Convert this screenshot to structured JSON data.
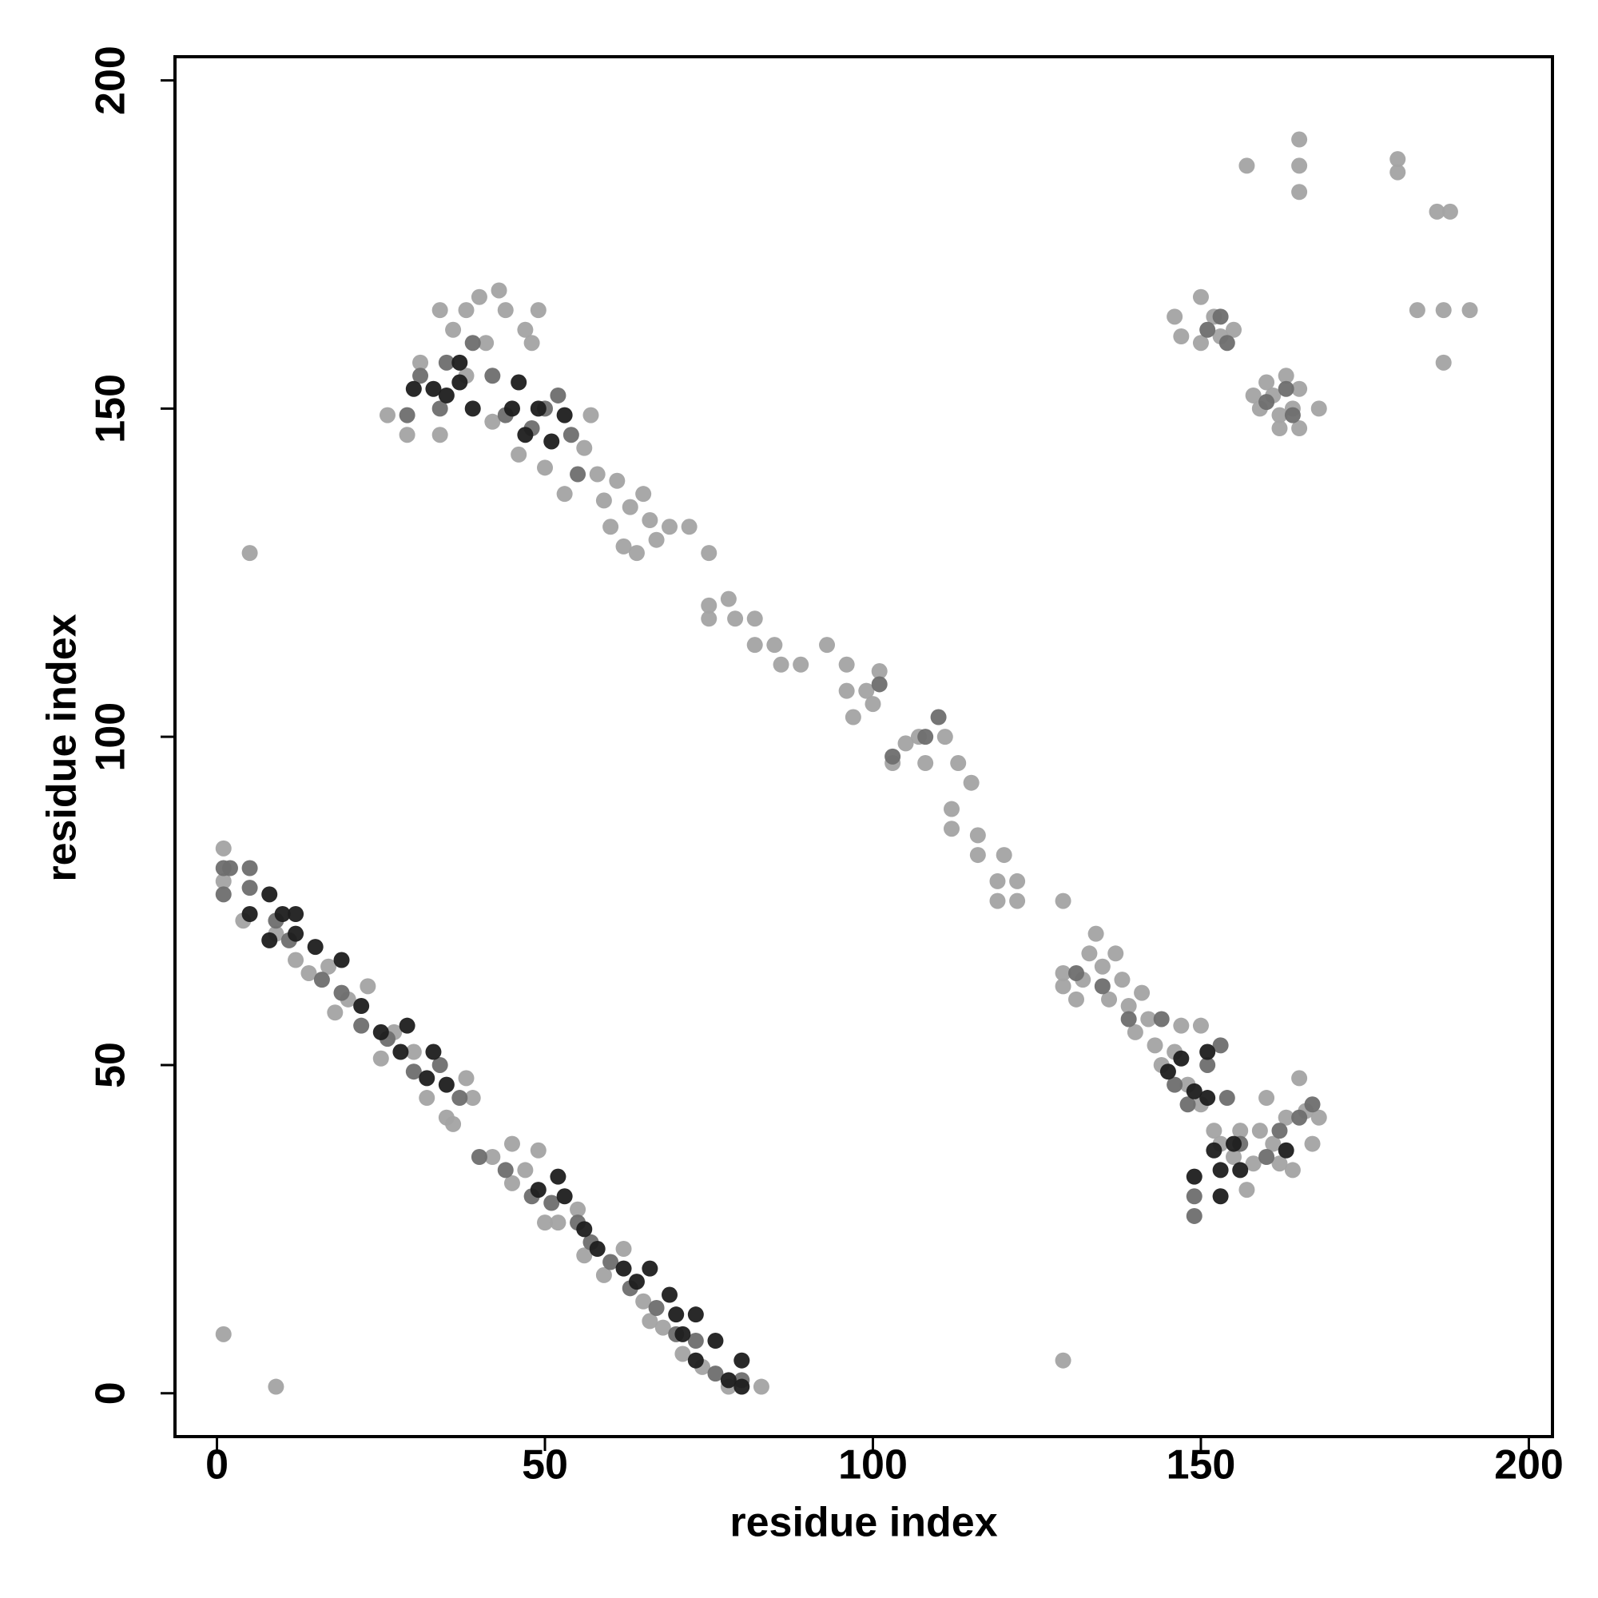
{
  "chart_data": {
    "type": "scatter",
    "xlabel": "residue index",
    "ylabel": "residue index",
    "xlim": [
      -6.4,
      203.6
    ],
    "ylim": [
      -6.6,
      203.6
    ],
    "xticks": [
      0,
      50,
      100,
      150,
      200
    ],
    "yticks": [
      0,
      50,
      100,
      150,
      200
    ],
    "series": [
      {
        "color": "#a3a3a3",
        "x": [
          1,
          1,
          4,
          9,
          12,
          14,
          17,
          20,
          18,
          23,
          25,
          27,
          30,
          32,
          35,
          38,
          39,
          36,
          42,
          45,
          45,
          47,
          49,
          50,
          52,
          55,
          56,
          59,
          62,
          65,
          66,
          68,
          71,
          74,
          78,
          83,
          1,
          9,
          5,
          129,
          26,
          29,
          31,
          34,
          34,
          36,
          38,
          40,
          41,
          43,
          44,
          47,
          49,
          48,
          38,
          42,
          46,
          50,
          53,
          56,
          58,
          57,
          59,
          60,
          61,
          62,
          63,
          64,
          65,
          66,
          67,
          69,
          72,
          75,
          75,
          75,
          78,
          79,
          82,
          82,
          85,
          86,
          89,
          93,
          96,
          96,
          97,
          99,
          100,
          101,
          103,
          105,
          107,
          108,
          111,
          113,
          115,
          112,
          112,
          116,
          116,
          119,
          120,
          119,
          122,
          122,
          129,
          129,
          129,
          131,
          132,
          133,
          134,
          135,
          136,
          137,
          138,
          139,
          140,
          141,
          142,
          143,
          144,
          146,
          147,
          148,
          150,
          150,
          152,
          153,
          155,
          156,
          157,
          158,
          159,
          160,
          161,
          162,
          163,
          164,
          165,
          166,
          167,
          168,
          146,
          150,
          150,
          152,
          153,
          155,
          147,
          158,
          159,
          160,
          161,
          162,
          163,
          164,
          165,
          165,
          168,
          162,
          157,
          165,
          165,
          165,
          180,
          180,
          186,
          188,
          183,
          187,
          191,
          187
        ],
        "values": [
          83,
          78,
          72,
          70,
          66,
          64,
          65,
          60,
          58,
          62,
          51,
          55,
          52,
          45,
          42,
          48,
          45,
          41,
          36,
          32,
          38,
          34,
          37,
          26,
          26,
          28,
          21,
          18,
          22,
          14,
          11,
          10,
          6,
          4,
          1,
          1,
          9,
          1,
          128,
          5,
          149,
          146,
          157,
          146,
          165,
          162,
          165,
          167,
          160,
          168,
          165,
          162,
          165,
          160,
          155,
          148,
          143,
          141,
          137,
          144,
          140,
          149,
          136,
          132,
          139,
          129,
          135,
          128,
          137,
          133,
          130,
          132,
          132,
          128,
          120,
          118,
          121,
          118,
          118,
          114,
          114,
          111,
          111,
          114,
          111,
          107,
          103,
          107,
          105,
          110,
          96,
          99,
          100,
          96,
          100,
          96,
          93,
          89,
          86,
          85,
          82,
          78,
          82,
          75,
          78,
          75,
          75,
          62,
          64,
          60,
          63,
          67,
          70,
          65,
          60,
          67,
          63,
          59,
          55,
          61,
          57,
          53,
          50,
          52,
          56,
          47,
          56,
          44,
          40,
          38,
          36,
          40,
          31,
          35,
          40,
          45,
          38,
          35,
          42,
          34,
          48,
          43,
          38,
          42,
          164,
          167,
          160,
          164,
          161,
          162,
          161,
          152,
          150,
          154,
          152,
          149,
          155,
          150,
          147,
          153,
          150,
          147,
          187,
          191,
          187,
          183,
          188,
          186,
          180,
          180,
          165,
          165,
          165,
          157
        ]
      },
      {
        "color": "#6e6e6e",
        "x": [
          1,
          2,
          5,
          5,
          1,
          9,
          11,
          16,
          19,
          22,
          26,
          30,
          34,
          37,
          40,
          44,
          48,
          51,
          55,
          57,
          60,
          63,
          67,
          70,
          73,
          76,
          80,
          29,
          31,
          34,
          35,
          39,
          42,
          44,
          48,
          50,
          52,
          54,
          55,
          103,
          108,
          110,
          101,
          131,
          135,
          139,
          144,
          146,
          148,
          149,
          151,
          153,
          154,
          156,
          160,
          162,
          165,
          167,
          149,
          151,
          154,
          153,
          160,
          163,
          164
        ],
        "values": [
          80,
          80,
          77,
          80,
          76,
          72,
          69,
          63,
          61,
          56,
          54,
          49,
          50,
          45,
          36,
          34,
          30,
          29,
          26,
          23,
          20,
          16,
          13,
          9,
          8,
          3,
          2,
          149,
          155,
          150,
          157,
          160,
          155,
          149,
          147,
          150,
          152,
          146,
          140,
          97,
          100,
          103,
          108,
          64,
          62,
          57,
          57,
          47,
          44,
          30,
          50,
          53,
          45,
          38,
          36,
          40,
          42,
          44,
          27,
          162,
          160,
          164,
          151,
          153,
          149
        ]
      },
      {
        "color": "#1e1e1e",
        "x": [
          5,
          8,
          8,
          10,
          12,
          12,
          15,
          19,
          22,
          25,
          28,
          29,
          33,
          32,
          35,
          49,
          52,
          53,
          56,
          58,
          62,
          64,
          66,
          69,
          70,
          71,
          73,
          73,
          76,
          78,
          80,
          80,
          30,
          33,
          35,
          37,
          37,
          39,
          45,
          47,
          49,
          51,
          53,
          46,
          145,
          147,
          149,
          149,
          151,
          151,
          152,
          153,
          153,
          155,
          156,
          163
        ],
        "values": [
          73,
          69,
          76,
          73,
          70,
          73,
          68,
          66,
          59,
          55,
          52,
          56,
          52,
          48,
          47,
          31,
          33,
          30,
          25,
          22,
          19,
          17,
          19,
          15,
          12,
          9,
          12,
          5,
          8,
          2,
          5,
          1,
          153,
          153,
          152,
          154,
          157,
          150,
          150,
          146,
          150,
          145,
          149,
          154,
          49,
          51,
          46,
          33,
          45,
          52,
          37,
          34,
          30,
          38,
          34,
          37
        ]
      }
    ]
  }
}
